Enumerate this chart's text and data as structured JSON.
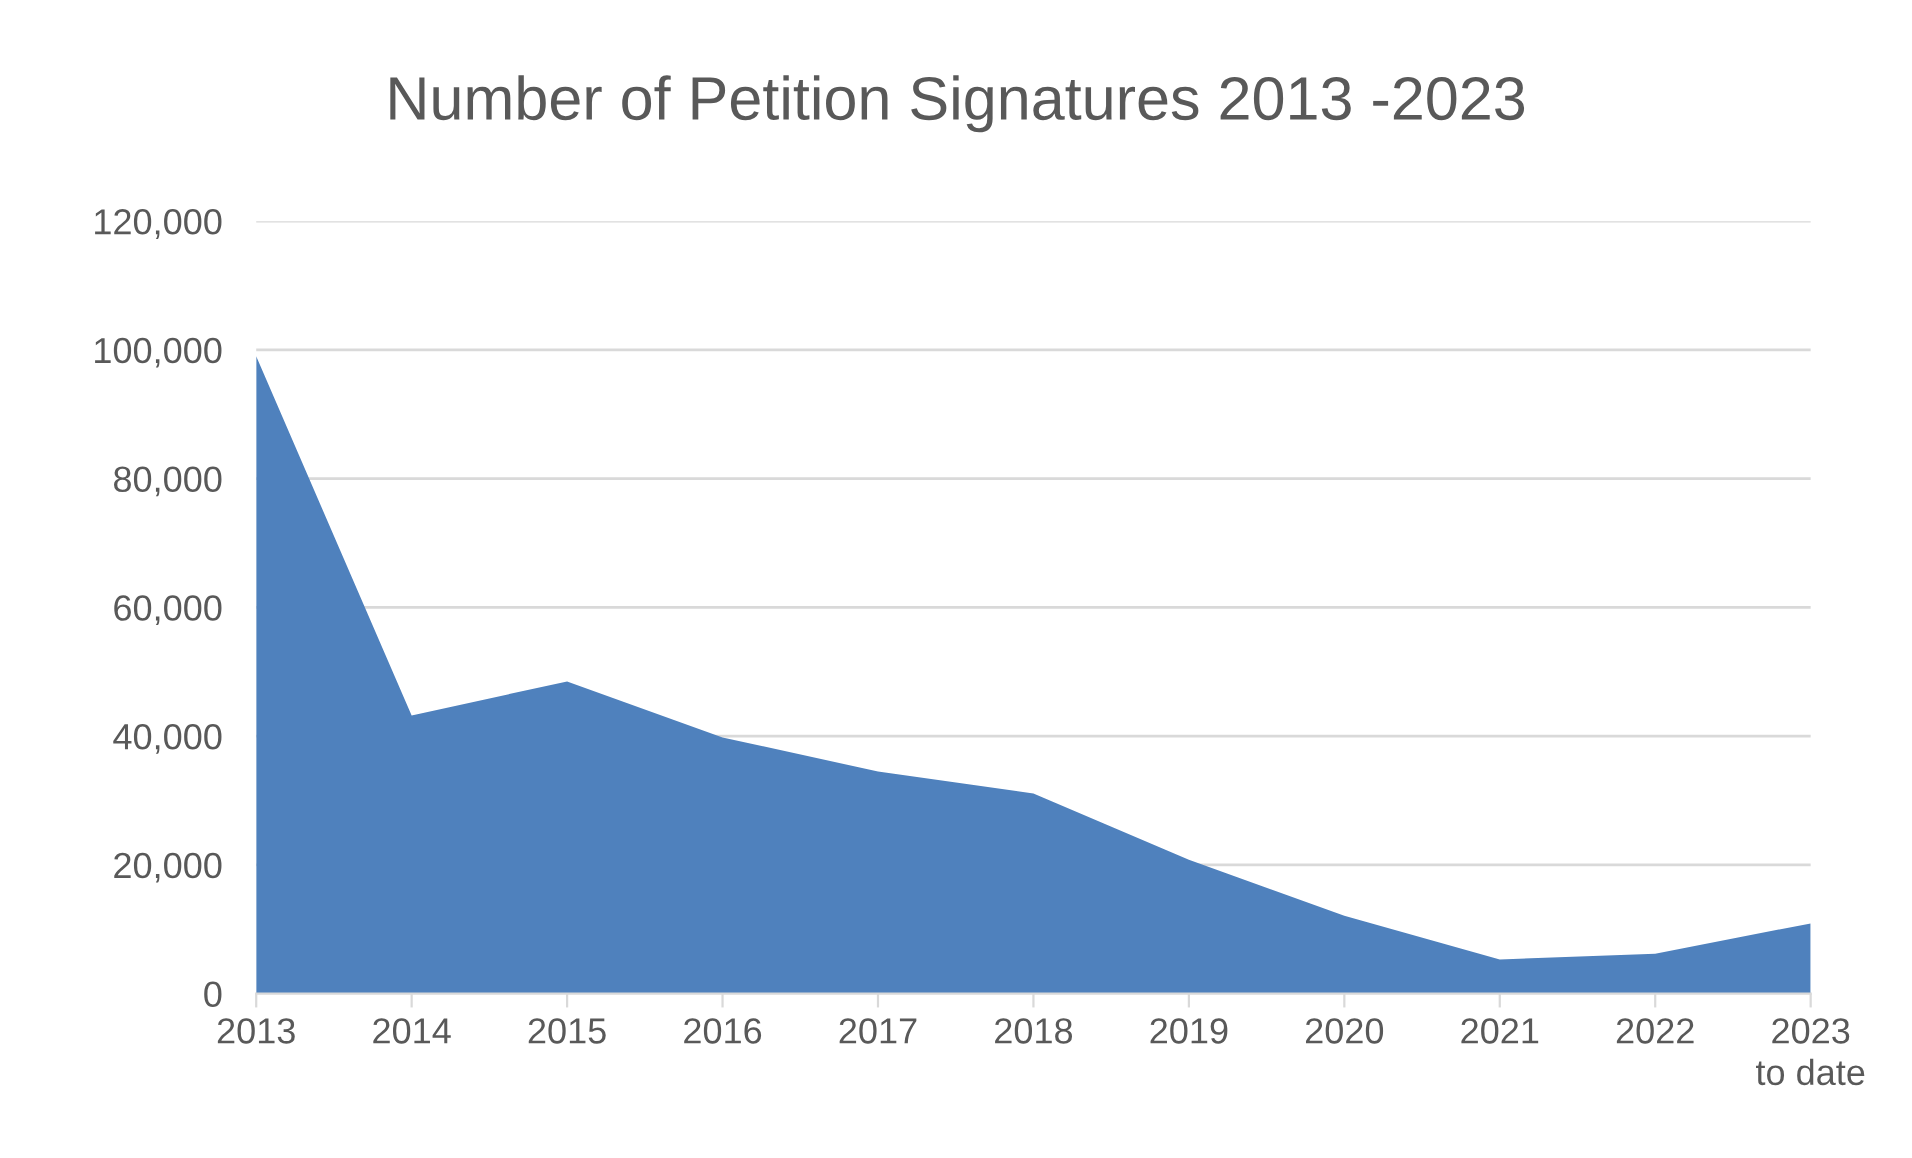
{
  "chart_data": {
    "type": "area",
    "title": "Number of Petition Signatures 2013 -2023",
    "categories": [
      "2013",
      "2014",
      "2015",
      "2016",
      "2017",
      "2018",
      "2019",
      "2020",
      "2021",
      "2022",
      "2023\nto date"
    ],
    "values": [
      99000,
      43200,
      48500,
      39800,
      34500,
      31100,
      20800,
      12100,
      5300,
      6200,
      10900
    ],
    "color": "#4f81bd",
    "ylim": [
      0,
      120000
    ],
    "yticks": [
      {
        "value": 0,
        "label": "0"
      },
      {
        "value": 20000,
        "label": "20,000"
      },
      {
        "value": 40000,
        "label": "40,000"
      },
      {
        "value": 60000,
        "label": "60,000"
      },
      {
        "value": 80000,
        "label": "80,000"
      },
      {
        "value": 100000,
        "label": "100,000"
      },
      {
        "value": 120000,
        "label": "120,000"
      }
    ],
    "grid": "y",
    "legend": false
  }
}
